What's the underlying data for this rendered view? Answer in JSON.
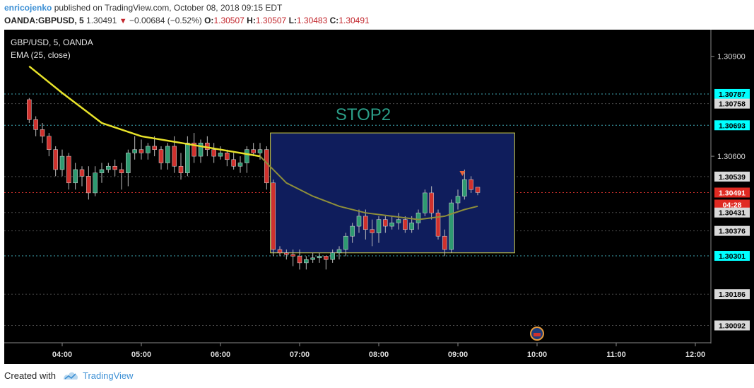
{
  "header": {
    "author": "enricojenko",
    "published_text": "published on TradingView.com, October 08, 2018 09:15 EDT",
    "symbol": "OANDA:GBPUSD, 5",
    "last": "1.30491",
    "change": "−0.00684 (−0.52%)",
    "o_label": "O:",
    "o_value": "1.30507",
    "h_label": "H:",
    "h_value": "1.30507",
    "l_label": "L:",
    "l_value": "1.30483",
    "c_label": "C:",
    "c_value": "1.30491"
  },
  "legend": {
    "pair": "GBP/USD, 5, OANDA",
    "indicator": "EMA (25, close)"
  },
  "annotation": {
    "box_label": "STOP2"
  },
  "footer": {
    "created_with": "Created with",
    "brand": "TradingView"
  },
  "colors": {
    "background": "#000000",
    "up": "#2e9a71",
    "down": "#d0312d",
    "ema": "#e8e32a",
    "box_fill": "#0f1d5c",
    "box_border": "#cfcf4a",
    "hline_cyan": "#3fa9b5",
    "price_red": "#d0312d"
  },
  "chart_data": {
    "type": "candlestick",
    "x_ticks": [
      "04:00",
      "05:00",
      "06:00",
      "07:00",
      "08:00",
      "09:00",
      "10:00",
      "11:00",
      "12:00"
    ],
    "y_ticks": [
      "1.30900",
      "1.30600"
    ],
    "y_range": [
      1.3004,
      1.3098
    ],
    "horizontal_levels": [
      {
        "label": "1.30787",
        "style": "cyan"
      },
      {
        "label": "1.30758",
        "style": "grey"
      },
      {
        "label": "1.30693",
        "style": "cyan"
      },
      {
        "label": "1.30539",
        "style": "grey"
      },
      {
        "label": "1.30491",
        "style": "red"
      },
      {
        "label": "04:28",
        "style": "red"
      },
      {
        "label": "1.30431",
        "style": "grey"
      },
      {
        "label": "1.30376",
        "style": "grey"
      },
      {
        "label": "1.30301",
        "style": "cyan"
      },
      {
        "label": "1.30186",
        "style": "grey"
      },
      {
        "label": "1.30092",
        "style": "grey"
      }
    ],
    "level_values": [
      1.30787,
      1.30758,
      1.30693,
      1.30539,
      1.30491,
      1.30431,
      1.30376,
      1.30301,
      1.30186,
      1.30092
    ],
    "time_start": "03:35",
    "candles": [
      [
        "03:35",
        1.3077,
        1.30775,
        1.307,
        1.3071
      ],
      [
        "03:40",
        1.3071,
        1.3072,
        1.3066,
        1.3068
      ],
      [
        "03:45",
        1.3068,
        1.307,
        1.3064,
        1.3066
      ],
      [
        "03:50",
        1.3066,
        1.3067,
        1.306,
        1.3062
      ],
      [
        "03:55",
        1.3062,
        1.3063,
        1.3054,
        1.3056
      ],
      [
        "04:00",
        1.3056,
        1.3062,
        1.3054,
        1.306
      ],
      [
        "04:05",
        1.306,
        1.3061,
        1.305,
        1.3052
      ],
      [
        "04:10",
        1.3052,
        1.3058,
        1.305,
        1.3056
      ],
      [
        "04:15",
        1.3056,
        1.3057,
        1.3051,
        1.3054
      ],
      [
        "04:20",
        1.3054,
        1.3057,
        1.3047,
        1.3049
      ],
      [
        "04:25",
        1.3049,
        1.3057,
        1.3048,
        1.3055
      ],
      [
        "04:30",
        1.3055,
        1.3058,
        1.3052,
        1.3056
      ],
      [
        "04:35",
        1.3056,
        1.3058,
        1.3055,
        1.3057
      ],
      [
        "04:40",
        1.3057,
        1.3059,
        1.3054,
        1.3056
      ],
      [
        "04:45",
        1.3056,
        1.3058,
        1.305,
        1.3055
      ],
      [
        "04:50",
        1.3055,
        1.3062,
        1.3051,
        1.3061
      ],
      [
        "04:55",
        1.3061,
        1.3066,
        1.3059,
        1.3062
      ],
      [
        "05:00",
        1.3062,
        1.3065,
        1.3059,
        1.3061
      ],
      [
        "05:05",
        1.3061,
        1.3064,
        1.3059,
        1.3063
      ],
      [
        "05:10",
        1.3063,
        1.3066,
        1.306,
        1.3062
      ],
      [
        "05:15",
        1.3062,
        1.3063,
        1.3056,
        1.3058
      ],
      [
        "05:20",
        1.3058,
        1.3064,
        1.3056,
        1.3063
      ],
      [
        "05:25",
        1.3063,
        1.3066,
        1.3055,
        1.3057
      ],
      [
        "05:30",
        1.3057,
        1.3061,
        1.3053,
        1.3055
      ],
      [
        "05:35",
        1.3055,
        1.3066,
        1.3054,
        1.3064
      ],
      [
        "05:40",
        1.3064,
        1.3067,
        1.3058,
        1.306
      ],
      [
        "05:45",
        1.306,
        1.3065,
        1.3058,
        1.3064
      ],
      [
        "05:50",
        1.3064,
        1.3066,
        1.306,
        1.3062
      ],
      [
        "05:55",
        1.3062,
        1.3064,
        1.3058,
        1.306
      ],
      [
        "06:00",
        1.306,
        1.3063,
        1.3059,
        1.3061
      ],
      [
        "06:05",
        1.3061,
        1.3062,
        1.3057,
        1.3059
      ],
      [
        "06:10",
        1.3059,
        1.3061,
        1.3056,
        1.3057
      ],
      [
        "06:15",
        1.3057,
        1.306,
        1.3055,
        1.3058
      ],
      [
        "06:20",
        1.3058,
        1.3063,
        1.3055,
        1.3062
      ],
      [
        "06:25",
        1.3062,
        1.3064,
        1.306,
        1.3061
      ],
      [
        "06:30",
        1.3061,
        1.3064,
        1.3059,
        1.3062
      ],
      [
        "06:35",
        1.3062,
        1.3063,
        1.305,
        1.3052
      ],
      [
        "06:40",
        1.3052,
        1.3053,
        1.303,
        1.3032
      ],
      [
        "06:45",
        1.3032,
        1.3033,
        1.303,
        1.3031
      ],
      [
        "06:50",
        1.3031,
        1.3032,
        1.3029,
        1.30305
      ],
      [
        "06:55",
        1.30305,
        1.3032,
        1.3027,
        1.303
      ],
      [
        "07:00",
        1.303,
        1.3032,
        1.3026,
        1.3028
      ],
      [
        "07:05",
        1.3028,
        1.303,
        1.3026,
        1.3029
      ],
      [
        "07:10",
        1.3029,
        1.3031,
        1.3028,
        1.30295
      ],
      [
        "07:15",
        1.30295,
        1.3031,
        1.3028,
        1.303
      ],
      [
        "07:20",
        1.303,
        1.303,
        1.3026,
        1.3029
      ],
      [
        "07:25",
        1.3029,
        1.3032,
        1.3028,
        1.3031
      ],
      [
        "07:30",
        1.3031,
        1.3033,
        1.3029,
        1.3032
      ],
      [
        "07:35",
        1.3032,
        1.3037,
        1.303,
        1.3036
      ],
      [
        "07:40",
        1.3036,
        1.304,
        1.3034,
        1.3039
      ],
      [
        "07:45",
        1.3039,
        1.3044,
        1.3037,
        1.3042
      ],
      [
        "07:50",
        1.3042,
        1.3044,
        1.3035,
        1.3038
      ],
      [
        "07:55",
        1.3038,
        1.3041,
        1.3033,
        1.3037
      ],
      [
        "08:00",
        1.3037,
        1.3042,
        1.3034,
        1.3041
      ],
      [
        "08:05",
        1.3041,
        1.3042,
        1.3037,
        1.3039
      ],
      [
        "08:10",
        1.3039,
        1.3042,
        1.3038,
        1.304
      ],
      [
        "08:15",
        1.304,
        1.3043,
        1.3038,
        1.3041
      ],
      [
        "08:20",
        1.3041,
        1.3042,
        1.3037,
        1.3038
      ],
      [
        "08:25",
        1.3038,
        1.3042,
        1.3037,
        1.304
      ],
      [
        "08:30",
        1.304,
        1.3044,
        1.3038,
        1.3043
      ],
      [
        "08:35",
        1.3043,
        1.305,
        1.3042,
        1.3049
      ],
      [
        "08:40",
        1.3049,
        1.3051,
        1.3041,
        1.3043
      ],
      [
        "08:45",
        1.3043,
        1.3044,
        1.3035,
        1.3036
      ],
      [
        "08:50",
        1.3036,
        1.3038,
        1.303,
        1.3032
      ],
      [
        "08:55",
        1.3032,
        1.3047,
        1.3031,
        1.3046
      ],
      [
        "09:00",
        1.3046,
        1.305,
        1.3044,
        1.3048
      ],
      [
        "09:05",
        1.3048,
        1.3056,
        1.3047,
        1.3053
      ],
      [
        "09:10",
        1.3053,
        1.3054,
        1.3049,
        1.305
      ],
      [
        "09:15",
        1.30507,
        1.30507,
        1.30483,
        1.30491
      ]
    ],
    "ema": [
      [
        "03:35",
        1.3087
      ],
      [
        "04:00",
        1.3079
      ],
      [
        "04:30",
        1.307
      ],
      [
        "05:00",
        1.3066
      ],
      [
        "05:30",
        1.3064
      ],
      [
        "06:00",
        1.3062
      ],
      [
        "06:30",
        1.306
      ],
      [
        "06:50",
        1.3052
      ],
      [
        "07:10",
        1.3048
      ],
      [
        "07:30",
        1.3045
      ],
      [
        "07:50",
        1.3043
      ],
      [
        "08:10",
        1.3042
      ],
      [
        "08:30",
        1.3041
      ],
      [
        "08:50",
        1.3042
      ],
      [
        "09:05",
        1.3044
      ],
      [
        "09:15",
        1.3045
      ]
    ],
    "marker": {
      "time": "09:05",
      "type": "down-arrow"
    },
    "event_icon_time": "10:00"
  }
}
